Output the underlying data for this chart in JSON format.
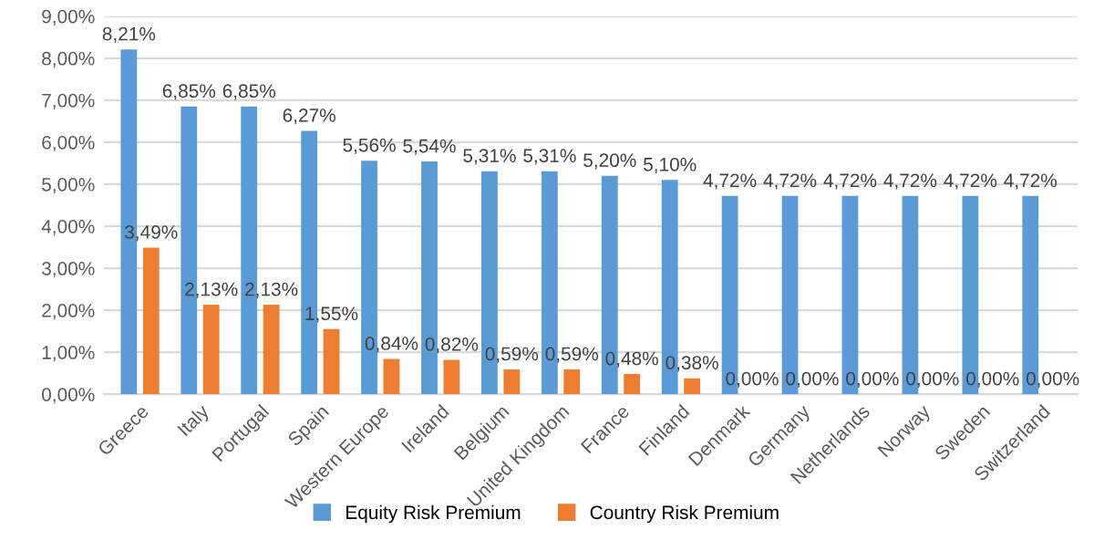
{
  "chart_data": {
    "type": "bar",
    "categories": [
      "Greece",
      "Italy",
      "Portugal",
      "Spain",
      "Western Europe",
      "Ireland",
      "Belgium",
      "United Kingdom",
      "France",
      "Finland",
      "Denmark",
      "Germany",
      "Netherlands",
      "Norway",
      "Sweden",
      "Switzerland"
    ],
    "series": [
      {
        "name": "Equity Risk Premium",
        "color": "#5b9bd5",
        "values": [
          8.21,
          6.85,
          6.85,
          6.27,
          5.56,
          5.54,
          5.31,
          5.31,
          5.2,
          5.1,
          4.72,
          4.72,
          4.72,
          4.72,
          4.72,
          4.72
        ],
        "value_labels": [
          "8,21%",
          "6,85%",
          "6,85%",
          "6,27%",
          "5,56%",
          "5,54%",
          "5,31%",
          "5,31%",
          "5,20%",
          "5,10%",
          "4,72%",
          "4,72%",
          "4,72%",
          "4,72%",
          "4,72%",
          "4,72%"
        ]
      },
      {
        "name": "Country Risk Premium",
        "color": "#ed7d31",
        "values": [
          3.49,
          2.13,
          2.13,
          1.55,
          0.84,
          0.82,
          0.59,
          0.59,
          0.48,
          0.38,
          0,
          0,
          0,
          0,
          0,
          0
        ],
        "value_labels": [
          "3,49%",
          "2,13%",
          "2,13%",
          "1,55%",
          "0,84%",
          "0,82%",
          "0,59%",
          "0,59%",
          "0,48%",
          "0,38%",
          "0,00%",
          "0,00%",
          "0,00%",
          "0,00%",
          "0,00%",
          "0,00%"
        ]
      }
    ],
    "ylim": [
      0,
      9
    ],
    "yticks": [
      {
        "value": 0,
        "label": "0,00%"
      },
      {
        "value": 1,
        "label": "1,00%"
      },
      {
        "value": 2,
        "label": "2,00%"
      },
      {
        "value": 3,
        "label": "3,00%"
      },
      {
        "value": 4,
        "label": "4,00%"
      },
      {
        "value": 5,
        "label": "5,00%"
      },
      {
        "value": 6,
        "label": "6,00%"
      },
      {
        "value": 7,
        "label": "7,00%"
      },
      {
        "value": 8,
        "label": "8,00%"
      },
      {
        "value": 9,
        "label": "9,00%"
      }
    ],
    "grid": "y",
    "legend": "bottom"
  }
}
